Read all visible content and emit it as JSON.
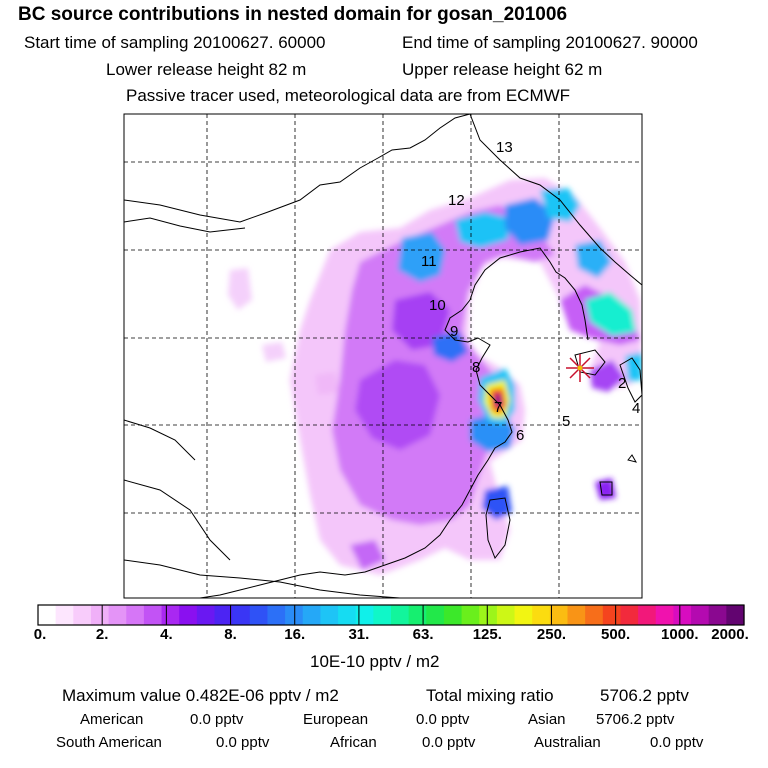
{
  "header": {
    "title": "BC  source contributions in nested domain for gosan_201006",
    "start_time": "Start time of sampling 20100627. 60000",
    "end_time": "End time of sampling 20100627. 90000",
    "lower_release": "Lower release height   82 m",
    "upper_release": "Upper release height   62 m",
    "tracer_note": "Passive tracer used, meteorological data are from ECMWF"
  },
  "map": {
    "markers": [
      "13",
      "12",
      "11",
      "10",
      "9",
      "8",
      "7",
      "6",
      "5",
      "2",
      "4"
    ],
    "receptor": "gosan"
  },
  "colorbar": {
    "ticks": [
      "0.",
      "2.",
      "4.",
      "8.",
      "16.",
      "31.",
      "63.",
      "125.",
      "250.",
      "500.",
      "1000.",
      "2000."
    ],
    "unit": "10E-10 pptv / m2",
    "colors": [
      "#ffffff",
      "#fde6fe",
      "#f8ccfb",
      "#f0b0f8",
      "#e494f7",
      "#d676f7",
      "#c253f5",
      "#a928f2",
      "#8a10f0",
      "#6a18f2",
      "#4c24f3",
      "#3a36f5",
      "#2f52f6",
      "#2c70f7",
      "#2a8cf7",
      "#25a8f7",
      "#1ec4f6",
      "#16dcf2",
      "#10f0ea",
      "#10f7c8",
      "#12f59c",
      "#16ef70",
      "#22e84a",
      "#3ce82a",
      "#6aef1c",
      "#9cf51a",
      "#cdf716",
      "#f2f512",
      "#fbdc10",
      "#fbbc12",
      "#f99416",
      "#f76e1a",
      "#f5441e",
      "#f22a3c",
      "#f2187a",
      "#f012ae",
      "#d80cc0",
      "#b40ab0",
      "#8a0890",
      "#620470"
    ]
  },
  "footer": {
    "max_value": "Maximum value  0.482E-06 pptv / m2",
    "total_label": "Total mixing ratio",
    "total_value": "5706.2 pptv",
    "regions": [
      {
        "name": "American",
        "value": "0.0 pptv"
      },
      {
        "name": "European",
        "value": "0.0 pptv"
      },
      {
        "name": "Asian",
        "value": "5706.2 pptv"
      },
      {
        "name": "South American",
        "value": "0.0 pptv"
      },
      {
        "name": "African",
        "value": "0.0 pptv"
      },
      {
        "name": "Australian",
        "value": "0.0 pptv"
      }
    ]
  }
}
